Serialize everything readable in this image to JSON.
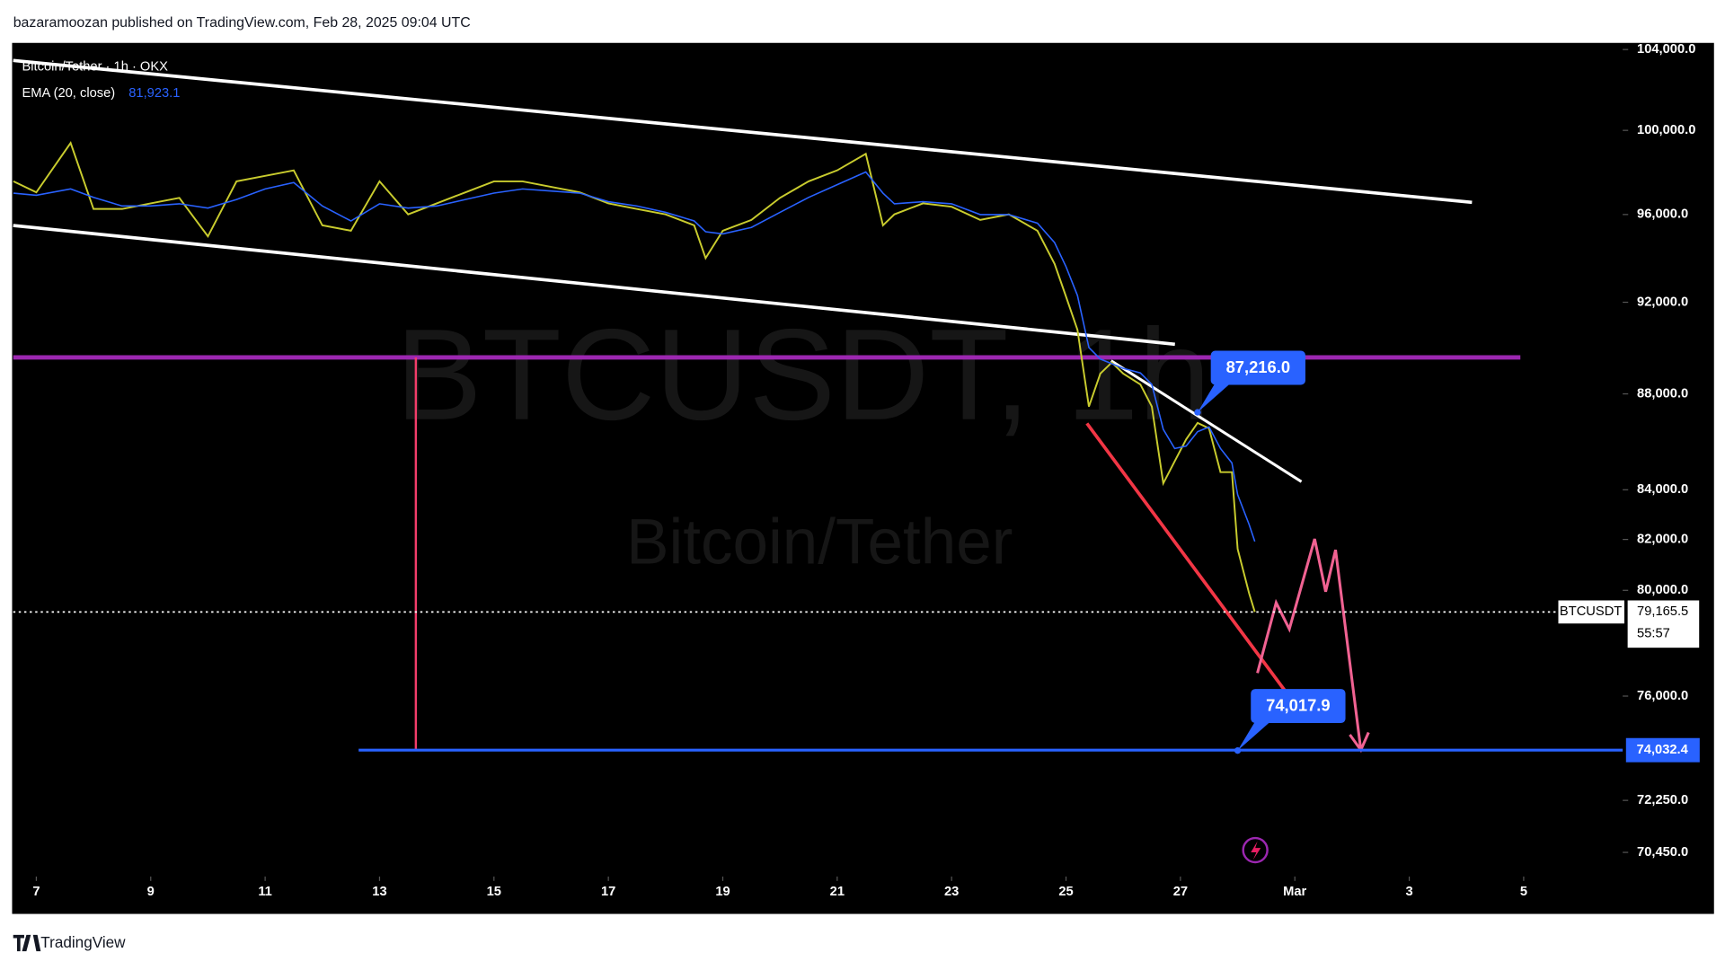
{
  "header": "bazaramoozan published on TradingView.com, Feb 28, 2025 09:04 UTC",
  "footer": "TradingView",
  "chart_data": {
    "type": "line",
    "watermark": {
      "symbol": "BTCUSDT, 1h",
      "name": "Bitcoin/Tether"
    },
    "log_scale": true,
    "x": [
      6.6,
      7,
      7.6,
      8,
      8.5,
      9,
      9.5,
      10,
      10.5,
      11,
      11.5,
      12,
      12.5,
      13,
      13.5,
      14,
      14.5,
      15,
      15.5,
      16,
      16.5,
      17,
      17.5,
      18,
      18.5,
      18.7,
      19,
      19.5,
      20,
      20.5,
      21,
      21.5,
      21.8,
      22,
      22.5,
      23,
      23.5,
      24,
      24.5,
      24.8,
      25,
      25.2,
      25.4,
      25.6,
      25.8,
      26,
      26.3,
      26.5,
      26.7,
      26.9,
      27.1,
      27.3,
      27.5,
      27.7,
      27.9,
      28,
      28.2,
      28.3
    ],
    "series": [
      {
        "name": "Bitcoin/Tether · 1h · OKX",
        "color": "#c9cc2e",
        "values": [
          97560,
          97040,
          99390,
          96260,
          96260,
          96520,
          96780,
          94990,
          97560,
          97820,
          98080,
          95500,
          95250,
          97560,
          96010,
          96520,
          97040,
          97560,
          97560,
          97300,
          97040,
          96520,
          96260,
          96010,
          95500,
          93990,
          95250,
          95750,
          96780,
          97560,
          98080,
          98870,
          95500,
          96010,
          96520,
          96360,
          95750,
          96010,
          95250,
          93730,
          92250,
          90780,
          87460,
          88870,
          89350,
          88870,
          88400,
          87460,
          84260,
          85170,
          86080,
          86770,
          86540,
          84720,
          84720,
          81620,
          79890,
          79165.5
        ]
      },
      {
        "name": "EMA (20, close)",
        "color": "#2962ff",
        "value_label": "81,923.1",
        "values": [
          97000,
          96900,
          97200,
          96800,
          96400,
          96400,
          96500,
          96300,
          96700,
          97200,
          97500,
          96400,
          95700,
          96500,
          96300,
          96400,
          96700,
          97000,
          97200,
          97100,
          97000,
          96600,
          96400,
          96100,
          95700,
          95200,
          95100,
          95400,
          96100,
          96800,
          97400,
          98000,
          97000,
          96500,
          96600,
          96500,
          96000,
          96000,
          95600,
          94700,
          93600,
          92300,
          90000,
          89500,
          89300,
          89100,
          88900,
          88400,
          86500,
          85700,
          85800,
          86400,
          86600,
          85700,
          85100,
          83800,
          82600,
          81923.1
        ]
      }
    ],
    "xlim": [
      6.596,
      34.731
    ],
    "xticks": [
      7,
      9,
      11,
      13,
      15,
      17,
      19,
      21,
      23,
      25,
      27,
      {
        "value": 29,
        "label": "Mar"
      },
      {
        "value": 31,
        "label": "3"
      },
      {
        "value": 33,
        "label": "5"
      }
    ],
    "ylim": [
      69630,
      104280
    ],
    "yticks": [
      {
        "value": 104000,
        "label": "104,000.0"
      },
      {
        "value": 100000,
        "label": "100,000.0"
      },
      {
        "value": 96000,
        "label": "96,000.0"
      },
      {
        "value": 92000,
        "label": "92,000.0"
      },
      {
        "value": 88000,
        "label": "88,000.0"
      },
      {
        "value": 84000,
        "label": "84,000.0"
      },
      {
        "value": 82000,
        "label": "82,000.0"
      },
      {
        "value": 80000,
        "label": "80,000.0"
      },
      {
        "value": 76000,
        "label": "76,000.0"
      },
      {
        "value": 72250,
        "label": "72,250.0"
      },
      {
        "value": 70450,
        "label": "70,450.0"
      }
    ],
    "price_line": {
      "value": 79165.5,
      "label": "79,165.5",
      "symbol": "BTCUSDT",
      "countdown": "55:57"
    },
    "level_line": {
      "value": 74032.4,
      "label": "74,032.4",
      "color": "#2962ff"
    },
    "annotations": [
      {
        "x": 27.3,
        "value": 87216.0,
        "label": "87,216.0"
      },
      {
        "x": 28,
        "value": 74017.9,
        "label": "74,017.9"
      }
    ]
  }
}
